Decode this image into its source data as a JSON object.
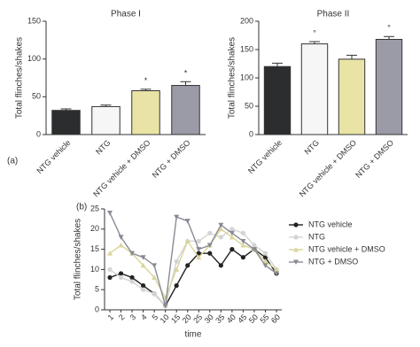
{
  "chart_data": [
    {
      "type": "bar",
      "panel": "(a)",
      "title": "Phase I",
      "ylabel": "Total flinches/shakes",
      "categories": [
        "NTG vehicle",
        "NTG",
        "NTG vehicle + DMSO",
        "NTG + DMSO"
      ],
      "values": [
        32,
        37,
        58,
        65
      ],
      "errors": [
        2,
        2,
        2,
        5
      ],
      "colors": [
        "#2b2d2f",
        "#f6f6f6",
        "#e9e4a6",
        "#9b9ba8"
      ],
      "markers": [
        null,
        null,
        "*",
        "*"
      ],
      "ylim": [
        0,
        150
      ],
      "yticks": [
        0,
        50,
        100,
        150
      ]
    },
    {
      "type": "bar",
      "title": "Phase II",
      "ylabel": "Total flinches/shakes",
      "categories": [
        "NTG vehicle",
        "NTG",
        "NTG vehicle + DMSO",
        "NTG + DMSO"
      ],
      "values": [
        120,
        160,
        133,
        168
      ],
      "errors": [
        6,
        4,
        7,
        5
      ],
      "colors": [
        "#2b2d2f",
        "#f6f6f6",
        "#e9e4a6",
        "#9b9ba8"
      ],
      "markers": [
        null,
        "°",
        null,
        "°"
      ],
      "ylim": [
        0,
        200
      ],
      "yticks": [
        0,
        50,
        100,
        150,
        200
      ]
    },
    {
      "type": "line",
      "panel": "(b)",
      "ylabel": "Total flinches/shakes",
      "xlabel": "time",
      "categories": [
        "1",
        "2",
        "3",
        "4",
        "5",
        "10",
        "15",
        "20",
        "25",
        "30",
        "35",
        "40",
        "45",
        "50",
        "55",
        "60"
      ],
      "series": [
        {
          "name": "NTG vehicle",
          "color": "#222222",
          "marker": "circle",
          "values": [
            8,
            9,
            8,
            6,
            4,
            1,
            6,
            11,
            14,
            14,
            11,
            15,
            13,
            15,
            13,
            9
          ]
        },
        {
          "name": "NTG",
          "color": "#d4d4d4",
          "marker": "circle",
          "values": [
            10,
            8,
            7,
            5,
            4,
            1,
            12,
            17,
            17,
            19,
            18,
            20,
            19,
            16,
            14,
            10
          ]
        },
        {
          "name": "NTG vehicle + DMSO",
          "color": "#d9d59a",
          "marker": "triangle",
          "values": [
            14,
            16,
            14,
            11,
            8,
            3,
            10,
            17,
            13,
            16,
            20,
            18,
            16,
            15,
            12,
            10
          ]
        },
        {
          "name": "NTG + DMSO",
          "color": "#8a8a96",
          "marker": "triangle-down",
          "values": [
            24,
            18,
            14,
            13,
            11,
            1,
            23,
            22,
            15,
            16,
            21,
            19,
            17,
            15,
            11,
            9
          ]
        }
      ],
      "ylim": [
        0,
        25
      ],
      "yticks": [
        0,
        5,
        10,
        15,
        20,
        25
      ]
    }
  ]
}
